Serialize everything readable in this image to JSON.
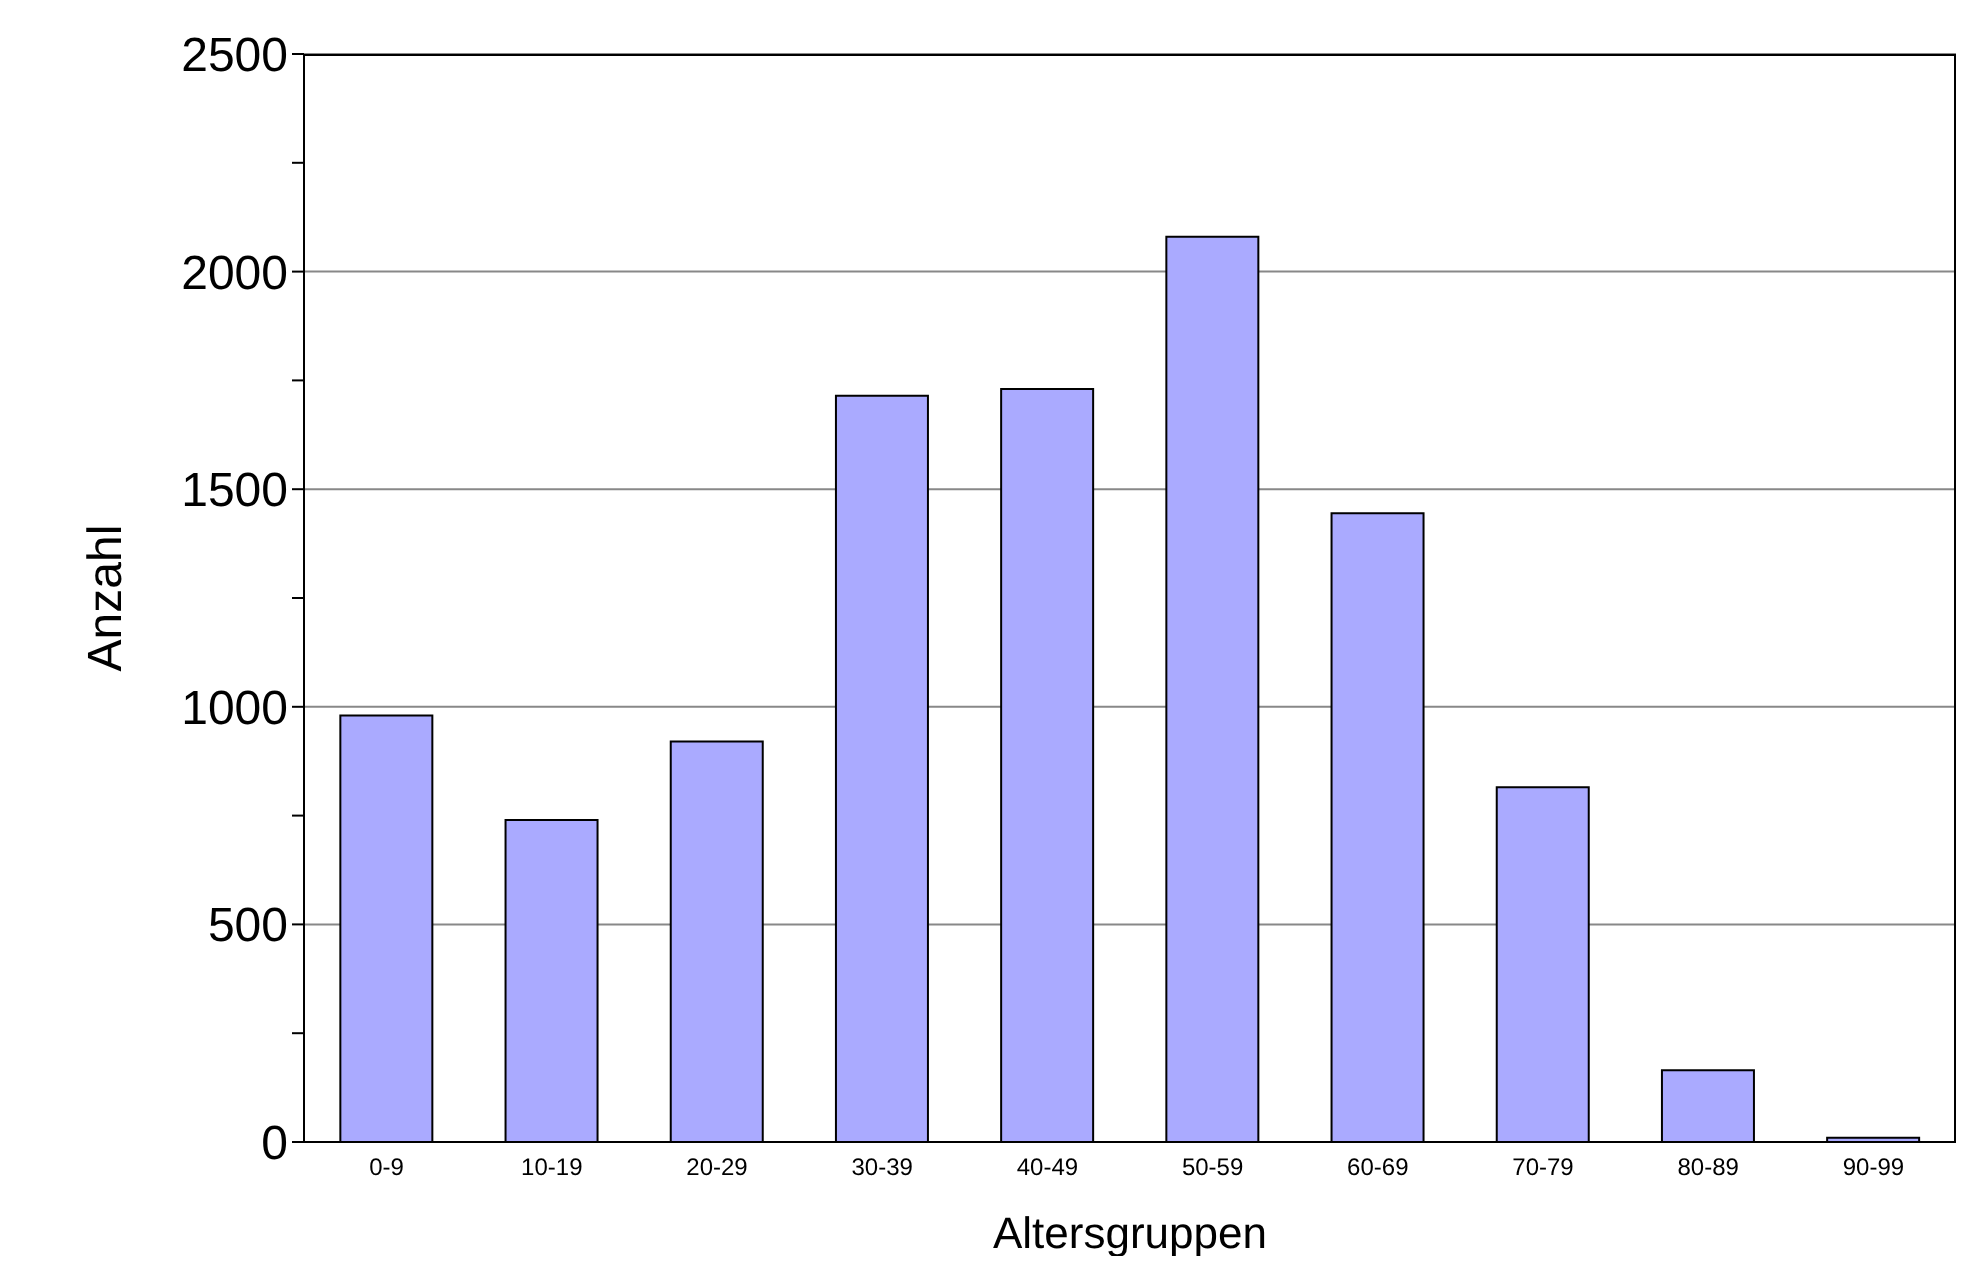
{
  "chart_data": {
    "type": "bar",
    "xlabel": "Altersgruppen",
    "ylabel": "Anzahl",
    "categories": [
      "0-9",
      "10-19",
      "20-29",
      "30-39",
      "40-49",
      "50-59",
      "60-69",
      "70-79",
      "80-89",
      "90-99"
    ],
    "values": [
      980,
      740,
      920,
      1715,
      1730,
      2080,
      1445,
      815,
      165,
      10
    ],
    "color": "#aaaaff",
    "ylim": [
      0,
      2500
    ],
    "yticks": [
      0,
      {
        "value": 250,
        "label": null
      },
      500,
      {
        "value": 750,
        "label": null
      },
      1000,
      {
        "value": 1250,
        "label": null
      },
      1500,
      {
        "value": 1750,
        "label": null
      },
      2000,
      {
        "value": 2250,
        "label": null
      },
      2500
    ],
    "grid": "y",
    "legend": false
  }
}
